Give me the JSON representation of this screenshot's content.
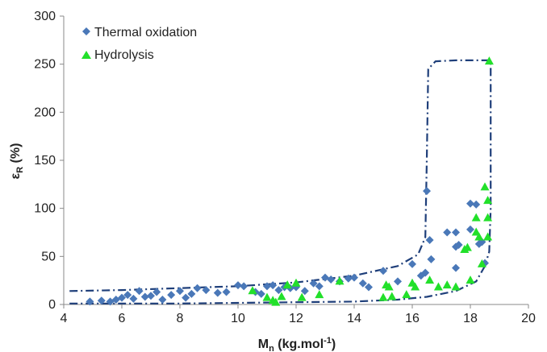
{
  "chart_data": {
    "type": "scatter",
    "xlim": [
      4,
      20
    ],
    "ylim": [
      0,
      300
    ],
    "xticks": [
      4,
      6,
      8,
      10,
      12,
      14,
      16,
      18,
      20
    ],
    "yticks": [
      0,
      50,
      100,
      150,
      200,
      250,
      300
    ],
    "xlabel": "Mn (kg.mol-1)",
    "ylabel": "εR (%)",
    "grid": false,
    "legend_position": "top-left",
    "series": [
      {
        "name": "Thermal oxidation",
        "marker": "diamond",
        "color": "#4a78b8",
        "points": [
          [
            4.9,
            3
          ],
          [
            5.3,
            4
          ],
          [
            5.6,
            3
          ],
          [
            5.8,
            5
          ],
          [
            6.0,
            7
          ],
          [
            6.2,
            10
          ],
          [
            6.4,
            6
          ],
          [
            6.6,
            14
          ],
          [
            6.8,
            8
          ],
          [
            7.0,
            9
          ],
          [
            7.2,
            13
          ],
          [
            7.4,
            5
          ],
          [
            7.7,
            10
          ],
          [
            8.0,
            14
          ],
          [
            8.2,
            7
          ],
          [
            8.4,
            11
          ],
          [
            8.6,
            17
          ],
          [
            8.9,
            15
          ],
          [
            9.3,
            12
          ],
          [
            9.6,
            13
          ],
          [
            10.0,
            20
          ],
          [
            10.2,
            19
          ],
          [
            10.6,
            13
          ],
          [
            10.8,
            11
          ],
          [
            11.0,
            19
          ],
          [
            11.2,
            20
          ],
          [
            11.4,
            15
          ],
          [
            11.6,
            18
          ],
          [
            11.8,
            17
          ],
          [
            12.0,
            18
          ],
          [
            12.3,
            14
          ],
          [
            12.6,
            22
          ],
          [
            12.8,
            19
          ],
          [
            13.0,
            28
          ],
          [
            13.2,
            26
          ],
          [
            13.5,
            24
          ],
          [
            13.8,
            27
          ],
          [
            14.0,
            28
          ],
          [
            14.3,
            22
          ],
          [
            14.5,
            18
          ],
          [
            15.0,
            35
          ],
          [
            15.5,
            24
          ],
          [
            16.0,
            42
          ],
          [
            16.3,
            30
          ],
          [
            16.45,
            33
          ],
          [
            16.5,
            118
          ],
          [
            16.6,
            67
          ],
          [
            16.65,
            47
          ],
          [
            17.2,
            75
          ],
          [
            17.5,
            75
          ],
          [
            17.5,
            60
          ],
          [
            17.6,
            62
          ],
          [
            17.5,
            38
          ],
          [
            18.0,
            105
          ],
          [
            18.0,
            78
          ],
          [
            18.2,
            104
          ],
          [
            18.3,
            63
          ],
          [
            18.4,
            65
          ],
          [
            18.5,
            43
          ]
        ]
      },
      {
        "name": "Hydrolysis",
        "marker": "triangle",
        "color": "#22e02a",
        "points": [
          [
            10.5,
            14
          ],
          [
            11.0,
            7
          ],
          [
            11.2,
            4
          ],
          [
            11.3,
            2
          ],
          [
            11.5,
            8
          ],
          [
            11.7,
            20
          ],
          [
            12.0,
            22
          ],
          [
            12.2,
            7
          ],
          [
            12.8,
            10
          ],
          [
            13.5,
            24
          ],
          [
            15.0,
            7
          ],
          [
            15.1,
            20
          ],
          [
            15.2,
            18
          ],
          [
            15.3,
            8
          ],
          [
            15.8,
            10
          ],
          [
            16.0,
            22
          ],
          [
            16.1,
            18
          ],
          [
            16.6,
            25
          ],
          [
            16.9,
            18
          ],
          [
            17.2,
            20
          ],
          [
            17.5,
            18
          ],
          [
            17.8,
            57
          ],
          [
            17.9,
            59
          ],
          [
            18.0,
            25
          ],
          [
            18.2,
            90
          ],
          [
            18.2,
            75
          ],
          [
            18.3,
            70
          ],
          [
            18.4,
            42
          ],
          [
            18.5,
            122
          ],
          [
            18.6,
            108
          ],
          [
            18.6,
            90
          ],
          [
            18.6,
            70
          ],
          [
            18.65,
            253
          ]
        ]
      }
    ],
    "envelope_upper": [
      [
        4.2,
        14
      ],
      [
        6,
        15
      ],
      [
        8,
        17
      ],
      [
        10,
        19
      ],
      [
        12,
        23
      ],
      [
        14,
        30
      ],
      [
        15.5,
        40
      ],
      [
        16.2,
        52
      ],
      [
        16.45,
        70
      ],
      [
        16.5,
        150
      ],
      [
        16.55,
        245
      ],
      [
        16.8,
        253
      ],
      [
        17.5,
        254
      ],
      [
        18.6,
        254
      ],
      [
        18.7,
        253
      ],
      [
        18.7,
        100
      ],
      [
        18.65,
        55
      ],
      [
        18.5,
        40
      ]
    ],
    "envelope_lower": [
      [
        4.2,
        1
      ],
      [
        8,
        1
      ],
      [
        11,
        2
      ],
      [
        14,
        3
      ],
      [
        15.5,
        5
      ],
      [
        16.5,
        8
      ],
      [
        17.5,
        14
      ],
      [
        18.2,
        24
      ],
      [
        18.5,
        40
      ]
    ],
    "envelope_color": "#1f3f7a"
  }
}
